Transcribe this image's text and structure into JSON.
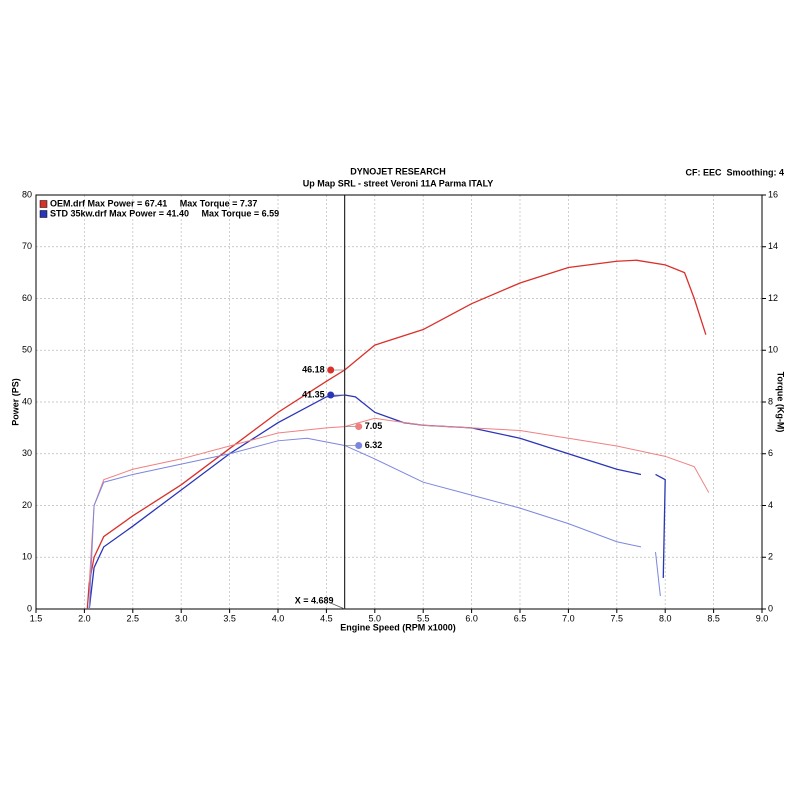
{
  "chart_data": {
    "type": "line",
    "title": "DYNOJET RESEARCH",
    "subtitle": "Up Map SRL - street Veroni 11A Parma ITALY",
    "corner_note": "CF: EEC  Smoothing: 4",
    "x_label": "Engine Speed (RPM x1000)",
    "y_label": "Power (PS)",
    "y2_label": "Torque (Kg-M)",
    "xlim": [
      1.5,
      9.0
    ],
    "ylim": [
      0,
      80
    ],
    "y2lim": [
      0,
      16
    ],
    "xticks": [
      {
        "value": 1.5,
        "label": "1.5"
      },
      {
        "value": 2,
        "label": "2.0"
      },
      {
        "value": 2.5,
        "label": "2.5"
      },
      {
        "value": 3,
        "label": "3.0"
      },
      {
        "value": 3.5,
        "label": "3.5"
      },
      {
        "value": 4,
        "label": "4.0"
      },
      {
        "value": 4.5,
        "label": "4.5"
      },
      {
        "value": 5,
        "label": "5.0"
      },
      {
        "value": 5.5,
        "label": "5.5"
      },
      {
        "value": 6,
        "label": "6.0"
      },
      {
        "value": 6.5,
        "label": "6.5"
      },
      {
        "value": 7,
        "label": "7.0"
      },
      {
        "value": 7.5,
        "label": "7.5"
      },
      {
        "value": 8,
        "label": "8.0"
      },
      {
        "value": 8.5,
        "label": "8.5"
      },
      {
        "value": 9,
        "label": "9.0"
      }
    ],
    "yticks": [
      0,
      10,
      20,
      30,
      40,
      50,
      60,
      70,
      80
    ],
    "y2ticks": [
      0,
      2,
      4,
      6,
      8,
      10,
      12,
      14,
      16
    ],
    "grid": true,
    "legend": [
      {
        "label": "OEM.drf Max Power = 67.41     Max Torque = 7.37",
        "color": "#d9302a"
      },
      {
        "label": "STD 35kw.drf Max Power = 41.40     Max Torque = 6.59",
        "color": "#2a35b8"
      }
    ],
    "cursor": {
      "value": 4.689,
      "label": "X = 4.689"
    },
    "series": [
      {
        "color": "#d9302a",
        "axis": "y",
        "cursor_value": 46.18,
        "x": [
          2.03,
          2.05,
          2.1,
          2.2,
          2.5,
          3.0,
          3.5,
          4.0,
          4.5,
          4.689,
          5.0,
          5.5,
          6.0,
          6.5,
          7.0,
          7.5,
          7.7,
          8.0,
          8.2,
          8.3,
          8.42
        ],
        "values": [
          0,
          5,
          10,
          14,
          18,
          24,
          31,
          38,
          44,
          46.18,
          51,
          54,
          59,
          63,
          66,
          67.2,
          67.4,
          66.5,
          65,
          60,
          53
        ]
      },
      {
        "color": "#2a35b8",
        "axis": "y",
        "cursor_value": 41.35,
        "x": [
          2.05,
          2.1,
          2.2,
          2.5,
          3.0,
          3.5,
          4.0,
          4.5,
          4.689,
          4.8,
          5.0,
          5.3,
          5.5,
          6.0,
          6.5,
          7.0,
          7.5,
          7.75,
          7.8,
          7.9,
          8.0,
          7.98
        ],
        "values": [
          0,
          8,
          12,
          16,
          23,
          30,
          36,
          41,
          41.35,
          41,
          38,
          36,
          35.5,
          35,
          33,
          30,
          27,
          26,
          null,
          26,
          25,
          6
        ]
      },
      {
        "color": "#f08080",
        "axis": "y2",
        "cursor_value": 7.05,
        "x": [
          2.05,
          2.1,
          2.2,
          2.5,
          3.0,
          3.5,
          4.0,
          4.5,
          4.689,
          5.0,
          5.5,
          6.0,
          6.5,
          7.0,
          7.5,
          8.0,
          8.3,
          8.45
        ],
        "values": [
          1,
          4,
          5,
          5.4,
          5.8,
          6.3,
          6.8,
          7.0,
          7.05,
          7.37,
          7.1,
          7.0,
          6.9,
          6.6,
          6.3,
          5.9,
          5.5,
          4.5
        ]
      },
      {
        "color": "#7b86e0",
        "axis": "y2",
        "cursor_value": 6.32,
        "x": [
          2.05,
          2.1,
          2.2,
          2.5,
          3.0,
          3.5,
          4.0,
          4.3,
          4.689,
          5.0,
          5.5,
          6.0,
          6.5,
          7.0,
          7.5,
          7.75,
          7.8,
          7.9,
          7.95
        ],
        "values": [
          0,
          4,
          4.9,
          5.2,
          5.6,
          6.0,
          6.5,
          6.6,
          6.32,
          5.8,
          4.9,
          4.4,
          3.9,
          3.3,
          2.6,
          2.4,
          null,
          2.2,
          0.5
        ]
      }
    ]
  }
}
